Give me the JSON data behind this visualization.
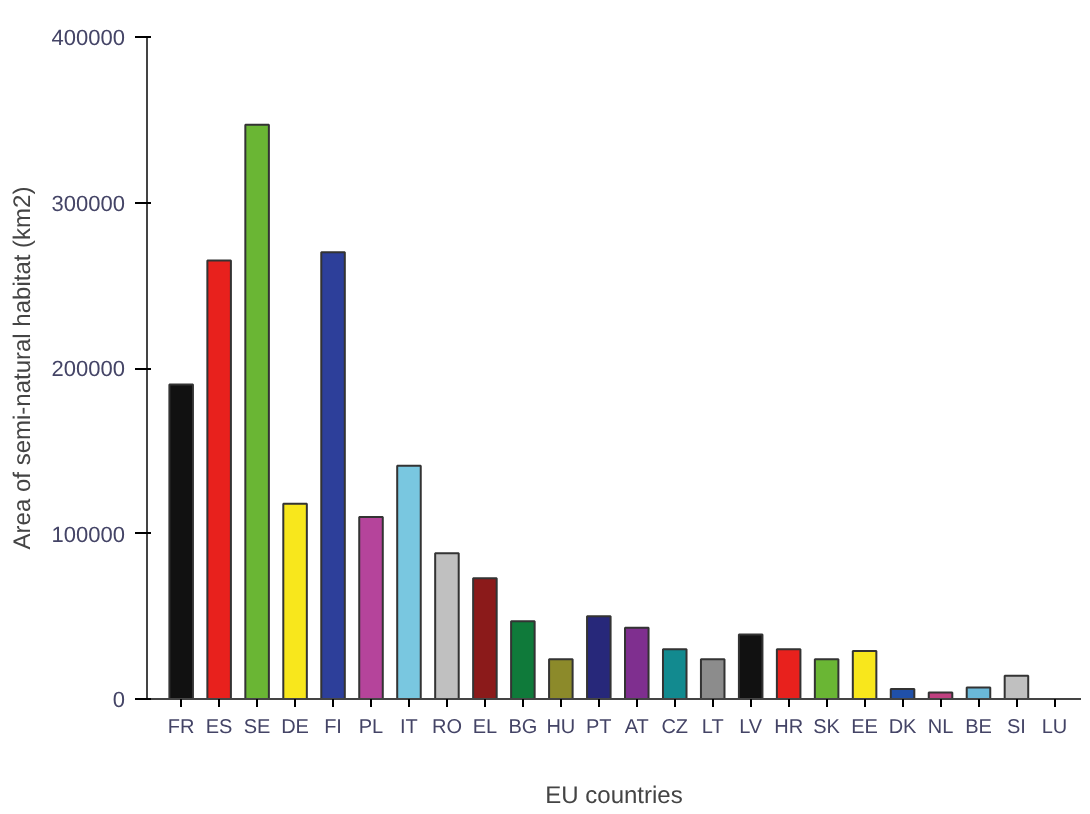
{
  "chart_data": {
    "type": "bar",
    "xlabel": "EU countries",
    "ylabel": "Area of semi-natural habitat (km2)",
    "categories": [
      "FR",
      "ES",
      "SE",
      "DE",
      "FI",
      "PL",
      "IT",
      "RO",
      "EL",
      "BG",
      "HU",
      "PT",
      "AT",
      "CZ",
      "LT",
      "LV",
      "HR",
      "SK",
      "EE",
      "DK",
      "NL",
      "BE",
      "SI",
      "LU"
    ],
    "values": [
      190000,
      265000,
      347000,
      118000,
      270000,
      110000,
      141000,
      88000,
      73000,
      47000,
      24000,
      50000,
      43000,
      30000,
      24000,
      39000,
      30000,
      24000,
      29000,
      6000,
      4000,
      7000,
      14000,
      null
    ],
    "colors": [
      "#111111",
      "#e8211d",
      "#6ab634",
      "#f8e71c",
      "#2d3f9a",
      "#b5449b",
      "#79c7e0",
      "#c0c0c0",
      "#8b1a1a",
      "#0f7a3a",
      "#8c8a2a",
      "#27287a",
      "#7f2f8f",
      "#128a8f",
      "#8c8c8c",
      "#111111",
      "#e8211d",
      "#6ab634",
      "#f8e71c",
      "#2050a8",
      "#c04080",
      "#6ab8d8",
      "#c0c0c0",
      null
    ],
    "ylim": [
      0,
      400000
    ],
    "yticks": [
      0,
      100000,
      200000,
      300000,
      400000
    ],
    "grid": false
  }
}
